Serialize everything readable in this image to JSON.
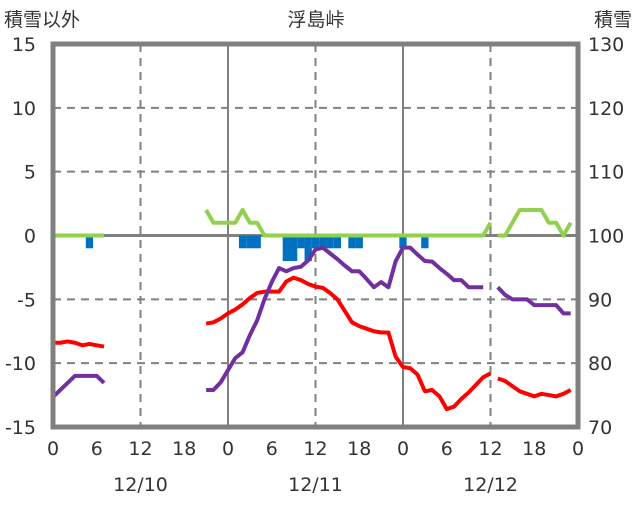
{
  "chart_data": {
    "type": "line",
    "title": "浮島峠",
    "ylabel_left": "積雪以外",
    "ylabel_right": "積雪",
    "ylim_left": [
      -15,
      15
    ],
    "ylim_right": [
      70,
      130
    ],
    "xlim_hours": [
      0,
      72
    ],
    "y_ticks_left": [
      "15",
      "10",
      "5",
      "0",
      "-5",
      "-10",
      "-15"
    ],
    "y_tick_values_left": [
      15,
      10,
      5,
      0,
      -5,
      -10,
      -15
    ],
    "y_ticks_right": [
      "130",
      "120",
      "110",
      "100",
      "90",
      "80",
      "70"
    ],
    "y_tick_values_right": [
      130,
      120,
      110,
      100,
      90,
      80,
      70
    ],
    "x_ticks": [
      "0",
      "6",
      "12",
      "18",
      "0",
      "6",
      "12",
      "18",
      "0",
      "6",
      "12",
      "18",
      "0"
    ],
    "x_tick_hours": [
      0,
      6,
      12,
      18,
      24,
      30,
      36,
      42,
      48,
      54,
      60,
      66,
      72
    ],
    "date_labels": [
      {
        "label": "12/10",
        "hour": 12
      },
      {
        "label": "12/11",
        "hour": 36
      },
      {
        "label": "12/12",
        "hour": 60
      }
    ],
    "grid": "dashed at ±5, ±10 and hours 12, 36, 60; solid at 0 and hours 24, 48",
    "colors": {
      "temperature": "#ff0000",
      "snow_depth": "#7030a0",
      "green_series": "#92d050",
      "bars": "#0070c0",
      "grid": "#808080"
    },
    "series": [
      {
        "name": "red",
        "axis": "left",
        "color": "#ff0000",
        "segments": [
          [
            [
              0,
              -8.4
            ],
            [
              1,
              -8.4
            ],
            [
              2,
              -8.3
            ],
            [
              3,
              -8.4
            ],
            [
              4,
              -8.6
            ],
            [
              5,
              -8.5
            ],
            [
              6,
              -8.6
            ],
            [
              7,
              -8.7
            ]
          ],
          [
            [
              21,
              -6.9
            ],
            [
              22,
              -6.8
            ],
            [
              23,
              -6.5
            ],
            [
              24,
              -6.1
            ],
            [
              25,
              -5.8
            ],
            [
              26,
              -5.4
            ],
            [
              27,
              -4.9
            ],
            [
              28,
              -4.5
            ],
            [
              29,
              -4.4
            ],
            [
              30,
              -4.4
            ],
            [
              31,
              -4.4
            ],
            [
              32,
              -3.6
            ],
            [
              33,
              -3.3
            ],
            [
              34,
              -3.5
            ],
            [
              35,
              -3.8
            ],
            [
              36,
              -4.0
            ],
            [
              37,
              -4.1
            ],
            [
              38,
              -4.5
            ],
            [
              39,
              -5.0
            ],
            [
              40,
              -5.9
            ],
            [
              41,
              -6.8
            ],
            [
              42,
              -7.1
            ],
            [
              43,
              -7.3
            ],
            [
              44,
              -7.5
            ],
            [
              45,
              -7.6
            ],
            [
              46,
              -7.6
            ],
            [
              47,
              -9.5
            ],
            [
              48,
              -10.3
            ],
            [
              49,
              -10.4
            ],
            [
              50,
              -10.9
            ],
            [
              51,
              -12.2
            ],
            [
              52,
              -12.1
            ],
            [
              53,
              -12.6
            ],
            [
              54,
              -13.6
            ],
            [
              55,
              -13.4
            ],
            [
              56,
              -12.8
            ],
            [
              57,
              -12.3
            ],
            [
              58,
              -11.7
            ],
            [
              59,
              -11.1
            ],
            [
              60,
              -10.8
            ]
          ],
          [
            [
              61,
              -11.2
            ],
            [
              62,
              -11.4
            ],
            [
              63,
              -11.8
            ],
            [
              64,
              -12.2
            ],
            [
              65,
              -12.4
            ],
            [
              66,
              -12.6
            ],
            [
              67,
              -12.4
            ],
            [
              68,
              -12.5
            ],
            [
              69,
              -12.6
            ],
            [
              70,
              -12.4
            ],
            [
              71,
              -12.1
            ]
          ]
        ]
      },
      {
        "name": "purple",
        "axis": "right",
        "color": "#7030a0",
        "segments": [
          [
            [
              0,
              74.7
            ],
            [
              1,
              75.8
            ],
            [
              2,
              76.9
            ],
            [
              3,
              78.0
            ],
            [
              4,
              78.0
            ],
            [
              5,
              78.0
            ],
            [
              6,
              78.0
            ],
            [
              7,
              76.9
            ]
          ],
          [
            [
              21,
              75.8
            ],
            [
              22,
              75.8
            ],
            [
              23,
              77.0
            ],
            [
              24,
              78.9
            ],
            [
              25,
              80.8
            ],
            [
              26,
              81.7
            ],
            [
              27,
              84.4
            ],
            [
              28,
              86.7
            ],
            [
              29,
              90.0
            ],
            [
              30,
              92.7
            ],
            [
              31,
              94.9
            ],
            [
              32,
              94.4
            ],
            [
              33,
              94.9
            ],
            [
              34,
              95.1
            ],
            [
              35,
              96.1
            ],
            [
              36,
              97.8
            ],
            [
              37,
              98.1
            ],
            [
              38,
              97.2
            ],
            [
              39,
              96.3
            ],
            [
              40,
              95.3
            ],
            [
              41,
              94.4
            ],
            [
              42,
              94.4
            ],
            [
              43,
              93.2
            ],
            [
              44,
              91.9
            ],
            [
              45,
              92.7
            ],
            [
              46,
              91.9
            ],
            [
              47,
              96.0
            ],
            [
              48,
              98.1
            ],
            [
              49,
              98.1
            ],
            [
              50,
              97.0
            ],
            [
              51,
              96.0
            ],
            [
              52,
              95.9
            ],
            [
              53,
              94.9
            ],
            [
              54,
              94.0
            ],
            [
              55,
              93.0
            ],
            [
              56,
              93.0
            ],
            [
              57,
              91.9
            ],
            [
              58,
              91.9
            ],
            [
              59,
              91.9
            ]
          ],
          [
            [
              61,
              91.9
            ],
            [
              62,
              90.7
            ],
            [
              63,
              90.0
            ],
            [
              64,
              90.0
            ],
            [
              65,
              90.0
            ],
            [
              66,
              89.1
            ],
            [
              67,
              89.1
            ],
            [
              68,
              89.1
            ],
            [
              69,
              89.1
            ],
            [
              70,
              87.8
            ],
            [
              71,
              87.8
            ]
          ]
        ]
      },
      {
        "name": "green",
        "axis": "left",
        "color": "#92d050",
        "segments": [
          [
            [
              0,
              0
            ],
            [
              7,
              0
            ]
          ],
          [
            [
              21,
              2
            ],
            [
              22,
              1
            ],
            [
              23,
              1
            ],
            [
              24,
              1
            ],
            [
              25,
              1
            ],
            [
              26,
              2
            ],
            [
              27,
              1
            ],
            [
              28,
              1
            ],
            [
              29,
              0
            ],
            [
              59,
              0
            ],
            [
              60,
              1
            ]
          ],
          [
            [
              61,
              0
            ],
            [
              62,
              0
            ],
            [
              63,
              1
            ],
            [
              64,
              2
            ],
            [
              65,
              2
            ],
            [
              66,
              2
            ],
            [
              67,
              2
            ],
            [
              68,
              1
            ],
            [
              69,
              1
            ],
            [
              70,
              0
            ],
            [
              71,
              1
            ]
          ]
        ]
      }
    ],
    "bars": {
      "name": "blue",
      "axis": "left",
      "color": "#0070c0",
      "points": [
        [
          5,
          -1
        ],
        [
          26,
          -1
        ],
        [
          27,
          -1
        ],
        [
          28,
          -1
        ],
        [
          32,
          -2
        ],
        [
          33,
          -2
        ],
        [
          34,
          -1
        ],
        [
          35,
          -2
        ],
        [
          36,
          -1
        ],
        [
          37,
          -1
        ],
        [
          38,
          -1
        ],
        [
          39,
          -1
        ],
        [
          41,
          -1
        ],
        [
          42,
          -1
        ],
        [
          48,
          -1
        ],
        [
          51,
          -1
        ]
      ]
    }
  }
}
